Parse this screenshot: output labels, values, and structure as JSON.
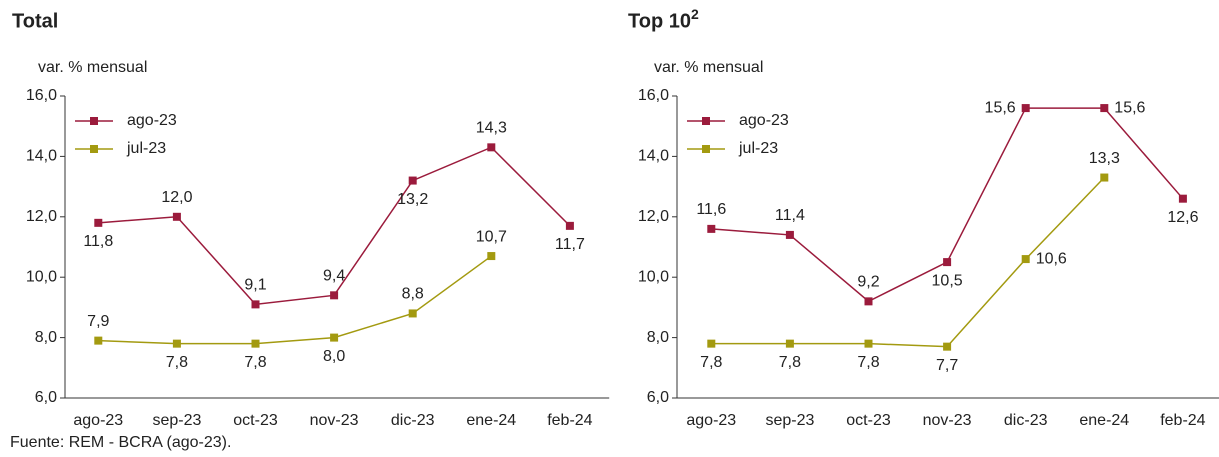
{
  "chart_data": [
    {
      "type": "line",
      "title": "Total",
      "ylabel": "var. % mensual",
      "categories": [
        "ago-23",
        "sep-23",
        "oct-23",
        "nov-23",
        "dic-23",
        "ene-24",
        "feb-24"
      ],
      "series": [
        {
          "name": "ago-23",
          "color": "#9b1b3c",
          "values": [
            11.8,
            12.0,
            9.1,
            9.4,
            13.2,
            14.3,
            11.7
          ],
          "value_labels": [
            "11,8",
            "12,0",
            "9,1",
            "9,4",
            "13,2",
            "14,3",
            "11,7"
          ]
        },
        {
          "name": "jul-23",
          "color": "#a39a10",
          "values": [
            7.9,
            7.8,
            7.8,
            8.0,
            8.8,
            10.7,
            null
          ],
          "value_labels": [
            "7,9",
            "7,8",
            "7,8",
            "8,0",
            "8,8",
            "10,7",
            null
          ]
        }
      ],
      "ylim": [
        6,
        16
      ],
      "yticks": [
        {
          "value": 6,
          "label": "6,0"
        },
        {
          "value": 8,
          "label": "8,0"
        },
        {
          "value": 10,
          "label": "10,0"
        },
        {
          "value": 12,
          "label": "12,0"
        },
        {
          "value": 14,
          "label": "14,0"
        },
        {
          "value": 16,
          "label": "16,0"
        }
      ],
      "grid": false,
      "legend": "upper left"
    },
    {
      "type": "line",
      "title": "Top 10",
      "title_superscript": "2",
      "ylabel": "var. % mensual",
      "categories": [
        "ago-23",
        "sep-23",
        "oct-23",
        "nov-23",
        "dic-23",
        "ene-24",
        "feb-24"
      ],
      "series": [
        {
          "name": "ago-23",
          "color": "#9b1b3c",
          "values": [
            11.6,
            11.4,
            9.2,
            10.5,
            15.6,
            15.6,
            12.6
          ],
          "value_labels": [
            "11,6",
            "11,4",
            "9,2",
            "10,5",
            "15,6",
            "15,6",
            "12,6"
          ]
        },
        {
          "name": "jul-23",
          "color": "#a39a10",
          "values": [
            7.8,
            7.8,
            7.8,
            7.7,
            10.6,
            13.3,
            null
          ],
          "value_labels": [
            "7,8",
            "7,8",
            "7,8",
            "7,7",
            "10,6",
            "13,3",
            null
          ]
        }
      ],
      "ylim": [
        6,
        16
      ],
      "yticks": [
        {
          "value": 6,
          "label": "6,0"
        },
        {
          "value": 8,
          "label": "8,0"
        },
        {
          "value": 10,
          "label": "10,0"
        },
        {
          "value": 12,
          "label": "12,0"
        },
        {
          "value": 14,
          "label": "14,0"
        },
        {
          "value": 16,
          "label": "16,0"
        }
      ],
      "grid": false,
      "legend": "upper left"
    }
  ],
  "source": "Fuente: REM - BCRA (ago-23)."
}
